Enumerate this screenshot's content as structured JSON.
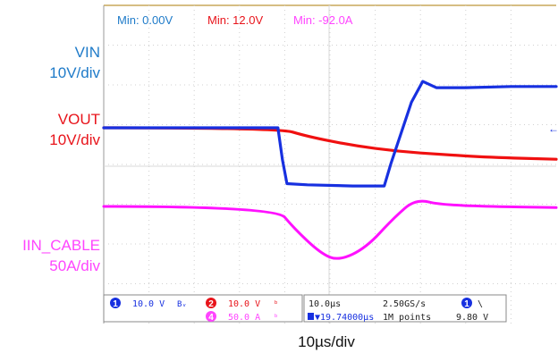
{
  "measurements": {
    "vin": {
      "text": "Min: 0.00V",
      "color": "#1F7BC9"
    },
    "vout": {
      "text": "Min: 12.0V",
      "color": "#E8141B"
    },
    "iin": {
      "text": "Min: -92.0A",
      "color": "#FF44FF"
    }
  },
  "labels": {
    "vin_name": "VIN",
    "vin_scale": "10V/div",
    "vout_name": "VOUT",
    "vout_scale": "10V/div",
    "iin_name": "IIN_CABLE",
    "iin_scale": "50A/div",
    "time_div": "10µs/div"
  },
  "colors": {
    "vin": "#1730E0",
    "vout": "#F01010",
    "iin": "#FF11FF",
    "label_blue": "#1F7BC9",
    "label_red": "#E8141B",
    "label_magenta": "#FF44FF"
  },
  "status": {
    "ch1_num": "1",
    "ch1_scale": "10.0 V",
    "ch1_coupling": "Bᵥ",
    "ch2_num": "2",
    "ch2_scale": "10.0 V",
    "ch4_num": "4",
    "ch4_scale": "50.0 A",
    "timebase": "10.0µs",
    "trigger_pos": "▼19.74000µs",
    "sample_rate": "2.50GS/s",
    "record_length": "1M points",
    "trig_ch": "1",
    "trig_slope": "\\",
    "trig_level": "9.80 V"
  },
  "chart_data": {
    "type": "line",
    "x_unit": "div (10µs/div)",
    "xlim": [
      0,
      10
    ],
    "series": [
      {
        "name": "VIN",
        "points": [
          [
            0,
            1.0
          ],
          [
            3.85,
            1.0
          ],
          [
            3.95,
            1.82
          ],
          [
            4.05,
            2.42
          ],
          [
            4.5,
            2.45
          ],
          [
            5.5,
            2.48
          ],
          [
            6.2,
            2.48
          ],
          [
            6.35,
            1.9
          ],
          [
            6.8,
            0.35
          ],
          [
            7.05,
            -0.18
          ],
          [
            7.35,
            -0.02
          ],
          [
            8.0,
            -0.02
          ],
          [
            9.0,
            -0.05
          ],
          [
            10,
            -0.05
          ]
        ]
      },
      {
        "name": "VOUT",
        "points": [
          [
            0,
            1.0
          ],
          [
            3.85,
            1.0
          ],
          [
            4.5,
            1.22
          ],
          [
            5.5,
            1.45
          ],
          [
            6.5,
            1.6
          ],
          [
            7.5,
            1.68
          ],
          [
            8.5,
            1.75
          ],
          [
            10,
            1.8
          ]
        ]
      },
      {
        "name": "IIN_CABLE",
        "points": [
          [
            0,
            0.0
          ],
          [
            3.8,
            0.0
          ],
          [
            4.2,
            0.55
          ],
          [
            4.8,
            1.2
          ],
          [
            5.2,
            1.38
          ],
          [
            5.8,
            1.05
          ],
          [
            6.4,
            0.3
          ],
          [
            6.9,
            -0.2
          ],
          [
            7.5,
            -0.02
          ],
          [
            10,
            0.03
          ]
        ]
      }
    ]
  }
}
